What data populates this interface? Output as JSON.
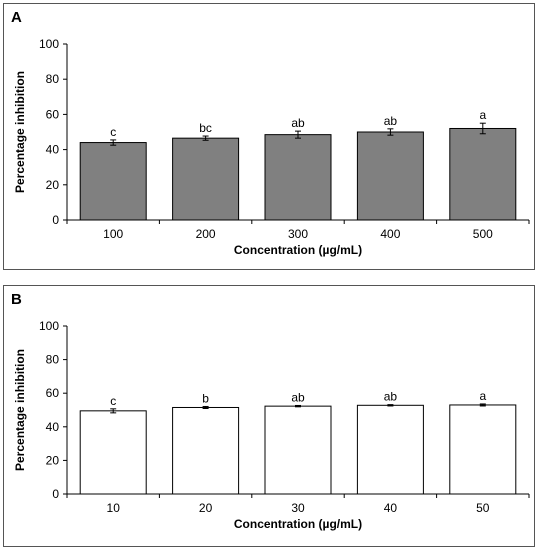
{
  "chart_data": [
    {
      "panel_label": "A",
      "type": "bar",
      "categories": [
        "100",
        "200",
        "300",
        "400",
        "500"
      ],
      "values": [
        44,
        46.5,
        48.5,
        50,
        52
      ],
      "errors": [
        1.5,
        1.2,
        2,
        1.8,
        3
      ],
      "letters": [
        "c",
        "bc",
        "ab",
        "ab",
        "a"
      ],
      "xlabel": "Concentration (µg/mL)",
      "ylabel": "Percentage inhibition",
      "ylim": [
        0,
        100
      ],
      "yticks": [
        0,
        20,
        40,
        60,
        80,
        100
      ],
      "bar_color": "#808080",
      "grid": false
    },
    {
      "panel_label": "B",
      "type": "bar",
      "categories": [
        "10",
        "20",
        "30",
        "40",
        "50"
      ],
      "values": [
        49.5,
        51.5,
        52.3,
        52.8,
        53
      ],
      "errors": [
        1.2,
        0.6,
        0.4,
        0.4,
        0.6
      ],
      "letters": [
        "c",
        "b",
        "ab",
        "ab",
        "a"
      ],
      "xlabel": "Concentration (µg/mL)",
      "ylabel": "Percentage inhibition",
      "ylim": [
        0,
        100
      ],
      "yticks": [
        0,
        20,
        40,
        60,
        80,
        100
      ],
      "bar_color": "#ffffff",
      "grid": false
    }
  ]
}
